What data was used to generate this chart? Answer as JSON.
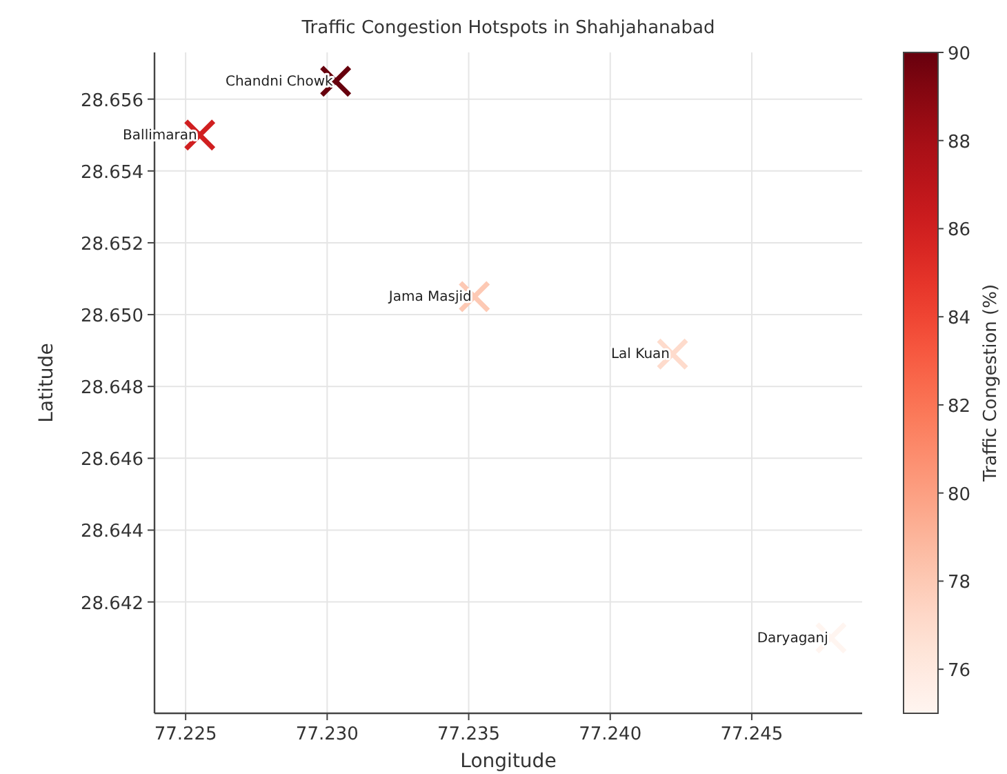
{
  "chart_data": {
    "type": "scatter",
    "title": "Traffic Congestion Hotspots in Shahjahanabad",
    "xlabel": "Longitude",
    "ylabel": "Latitude",
    "clabel": "Traffic Congestion (%)",
    "series": [
      {
        "x": [
          77.2303,
          77.2255,
          77.2352,
          77.2422,
          77.2478
        ],
        "values": [
          28.6565,
          28.655,
          28.6505,
          28.6489,
          28.641
        ],
        "cvalues": [
          90,
          86,
          78,
          77,
          75
        ]
      }
    ],
    "annotations": [
      {
        "text": "Chandni Chowk",
        "x": 77.2303,
        "y": 28.6565
      },
      {
        "text": "Ballimaran",
        "x": 77.2255,
        "y": 28.655
      },
      {
        "text": "Jama Masjid",
        "x": 77.2352,
        "y": 28.6505
      },
      {
        "text": "Lal Kuan",
        "x": 77.2422,
        "y": 28.6489
      },
      {
        "text": "Daryaganj",
        "x": 77.2478,
        "y": 28.641
      }
    ],
    "xlim": [
      77.2239,
      77.2489
    ],
    "ylim": [
      28.6389,
      28.6573
    ],
    "xticks": [
      77.225,
      {
        "value": 77.23,
        "label": "77.230"
      },
      77.235,
      {
        "value": 77.24,
        "label": "77.240"
      },
      77.245
    ],
    "yticks": [
      28.642,
      28.644,
      28.646,
      28.648,
      {
        "value": 28.65,
        "label": "28.650"
      },
      28.652,
      28.654,
      28.656
    ],
    "clim": [
      75,
      90
    ],
    "cticks": [
      76,
      78,
      80,
      82,
      84,
      86,
      88,
      90
    ],
    "grid": true,
    "marker": "cross"
  }
}
